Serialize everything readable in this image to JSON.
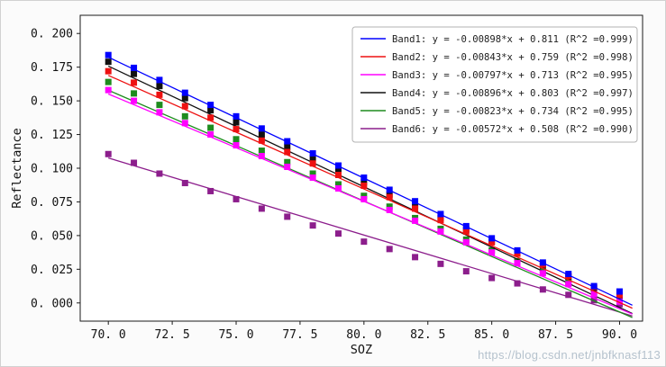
{
  "watermark": "https://blog.csdn.net/jnbfknasf113",
  "chart_data": {
    "type": "scatter",
    "title": "",
    "xlabel": "SOZ",
    "ylabel": "Reflectance",
    "xlim": [
      68.9,
      90.9
    ],
    "ylim": [
      -0.0135,
      0.2135
    ],
    "grid": false,
    "legend_position": "upper right",
    "marker": "square",
    "xticks": {
      "values": [
        70,
        72.5,
        75,
        77.5,
        80,
        82.5,
        85,
        87.5,
        90
      ],
      "labels": [
        "70. 0",
        "72. 5",
        "75. 0",
        "77. 5",
        "80. 0",
        "82. 5",
        "85. 0",
        "87. 5",
        "90. 0"
      ]
    },
    "yticks": {
      "values": [
        0,
        0.025,
        0.05,
        0.075,
        0.1,
        0.125,
        0.15,
        0.175,
        0.2
      ],
      "labels": [
        "0. 000",
        "0. 025",
        "0. 050",
        "0. 075",
        "0. 100",
        "0. 125",
        "0. 150",
        "0. 175",
        "0. 200"
      ]
    },
    "x": [
      70,
      71,
      72,
      73,
      74,
      75,
      76,
      77,
      78,
      79,
      80,
      81,
      82,
      83,
      84,
      85,
      86,
      87,
      88,
      89,
      90
    ],
    "series": [
      {
        "name": "Band1",
        "color": "#0000ff",
        "legend": "Band1: y = -0.00898*x + 0.811 (R^2 =0.999)",
        "slope": -0.00898,
        "intercept": 0.811,
        "r2": 0.999,
        "values": [
          0.184,
          0.1745,
          0.1655,
          0.156,
          0.147,
          0.1385,
          0.1295,
          0.12,
          0.111,
          0.102,
          0.093,
          0.084,
          0.0755,
          0.066,
          0.057,
          0.048,
          0.039,
          0.03,
          0.0215,
          0.0125,
          0.0085
        ]
      },
      {
        "name": "Band2",
        "color": "#ee1111",
        "legend": "Band2: y = -0.00843*x + 0.759 (R^2 =0.998)",
        "slope": -0.00843,
        "intercept": 0.759,
        "r2": 0.998,
        "values": [
          0.172,
          0.1635,
          0.1545,
          0.146,
          0.1375,
          0.129,
          0.1205,
          0.112,
          0.1035,
          0.095,
          0.087,
          0.0785,
          0.07,
          0.0615,
          0.053,
          0.045,
          0.0365,
          0.0285,
          0.02,
          0.012,
          0.006
        ]
      },
      {
        "name": "Band3",
        "color": "#ff00ff",
        "legend": "Band3: y = -0.00797*x + 0.713 (R^2 =0.995)",
        "slope": -0.00797,
        "intercept": 0.713,
        "r2": 0.995,
        "values": [
          0.158,
          0.15,
          0.1415,
          0.1335,
          0.125,
          0.117,
          0.109,
          0.101,
          0.093,
          0.085,
          0.077,
          0.069,
          0.061,
          0.053,
          0.045,
          0.0375,
          0.0295,
          0.022,
          0.014,
          0.0065,
          0.001
        ]
      },
      {
        "name": "Band4",
        "color": "#111111",
        "legend": "Band4: y = -0.00896*x + 0.803 (R^2 =0.997)",
        "slope": -0.00896,
        "intercept": 0.803,
        "r2": 0.997,
        "values": [
          0.179,
          0.17,
          0.161,
          0.152,
          0.143,
          0.134,
          0.125,
          0.116,
          0.1075,
          0.0985,
          0.0895,
          0.0805,
          0.072,
          0.063,
          0.0545,
          0.0455,
          0.037,
          0.028,
          0.0195,
          0.011,
          0.0045
        ]
      },
      {
        "name": "Band5",
        "color": "#1e8c1e",
        "legend": "Band5: y = -0.00823*x + 0.734 (R^2 =0.995)",
        "slope": -0.00823,
        "intercept": 0.734,
        "r2": 0.995,
        "values": [
          0.164,
          0.1555,
          0.147,
          0.1385,
          0.13,
          0.1215,
          0.113,
          0.1045,
          0.096,
          0.088,
          0.0795,
          0.0715,
          0.063,
          0.055,
          0.047,
          0.039,
          0.031,
          0.0235,
          0.0155,
          0.008,
          0.0025
        ]
      },
      {
        "name": "Band6",
        "color": "#8c1e8c",
        "legend": "Band6: y = -0.00572*x + 0.508 (R^2 =0.990)",
        "slope": -0.00572,
        "intercept": 0.508,
        "r2": 0.99,
        "values": [
          0.1105,
          0.104,
          0.096,
          0.089,
          0.083,
          0.077,
          0.07,
          0.064,
          0.0575,
          0.0515,
          0.0455,
          0.04,
          0.034,
          0.029,
          0.0235,
          0.0185,
          0.0145,
          0.01,
          0.006,
          0.002,
          -0.001
        ]
      }
    ]
  }
}
